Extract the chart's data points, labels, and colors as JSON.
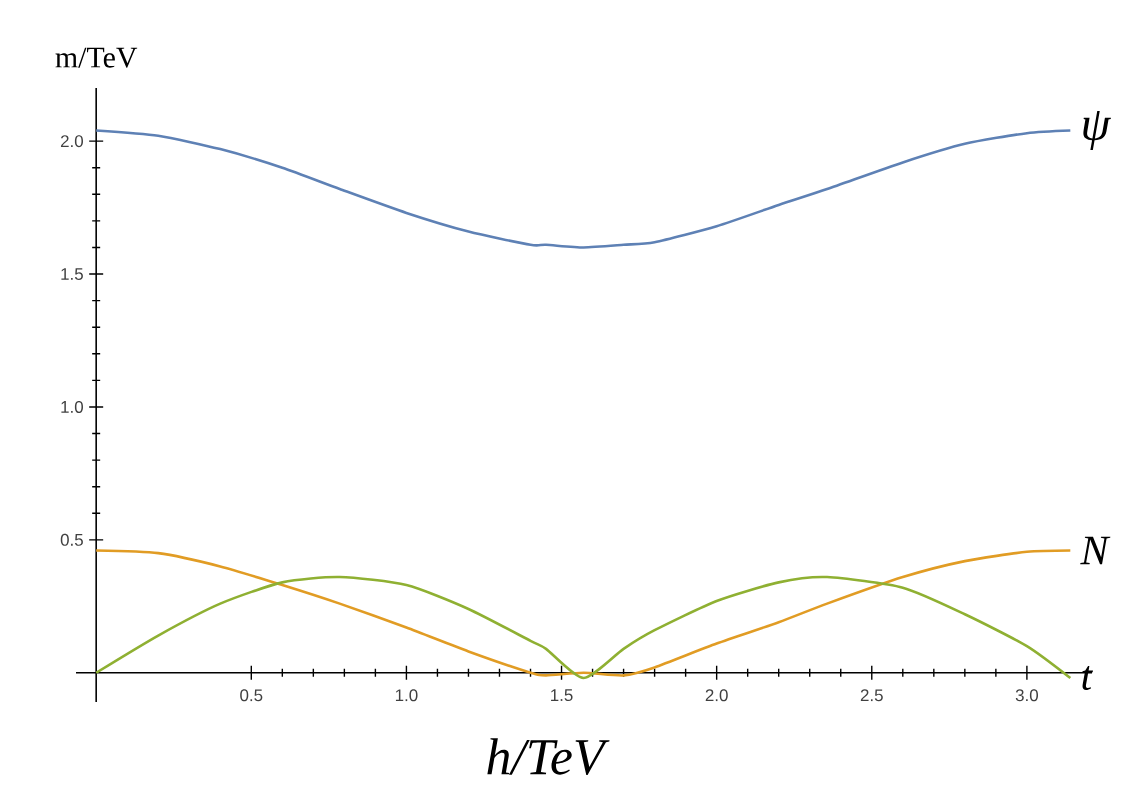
{
  "chart_data": {
    "type": "line",
    "xlabel": "h/TeV",
    "ylabel": "m/TeV",
    "x": [
      0,
      0.2,
      0.4,
      0.6,
      0.785,
      1.0,
      1.2,
      1.4,
      1.45,
      1.571,
      1.7,
      1.8,
      2.0,
      2.2,
      2.356,
      2.6,
      2.8,
      3.0,
      3.14
    ],
    "series": [
      {
        "name": "ψ",
        "color": "#5e81b5",
        "values": [
          2.04,
          2.02,
          1.97,
          1.9,
          1.82,
          1.73,
          1.66,
          1.61,
          1.61,
          1.6,
          1.61,
          1.62,
          1.68,
          1.76,
          1.82,
          1.92,
          1.99,
          2.03,
          2.04
        ]
      },
      {
        "name": "N",
        "color": "#e19c24",
        "values": [
          0.46,
          0.45,
          0.4,
          0.33,
          0.26,
          0.17,
          0.08,
          0.0,
          -0.01,
          0.0,
          -0.01,
          0.02,
          0.11,
          0.19,
          0.26,
          0.36,
          0.42,
          0.455,
          0.46
        ]
      },
      {
        "name": "t",
        "color": "#8fb032",
        "values": [
          0,
          0.14,
          0.26,
          0.34,
          0.36,
          0.33,
          0.24,
          0.12,
          0.09,
          -0.02,
          0.09,
          0.16,
          0.27,
          0.34,
          0.36,
          0.32,
          0.22,
          0.1,
          -0.02
        ]
      }
    ],
    "xlim": [
      -0.065,
      3.21
    ],
    "ylim": [
      -0.11,
      2.2
    ],
    "xticks": [
      0.5,
      {
        "value": 1,
        "label": "1.0"
      },
      1.5,
      {
        "value": 2,
        "label": "2.0"
      },
      2.5,
      {
        "value": 3,
        "label": "3.0"
      }
    ],
    "yticks": [
      0.5,
      {
        "value": 1,
        "label": "1.0"
      },
      1.5,
      {
        "value": 2,
        "label": "2.0"
      }
    ]
  }
}
